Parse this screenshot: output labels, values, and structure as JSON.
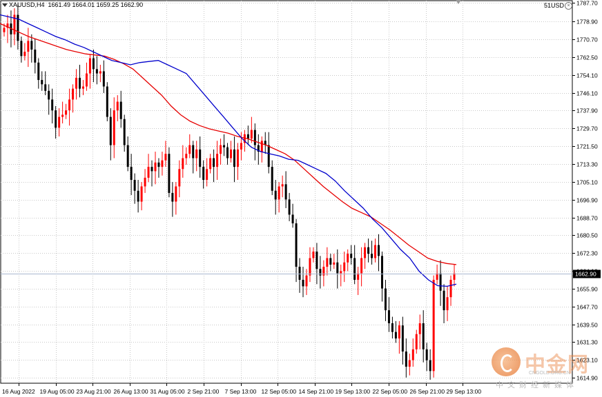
{
  "header": {
    "symbol": "XAUUSD,H4",
    "values": "1661.49 1664.01 1659.25 1662.90",
    "account": "51USD",
    "close_glyph": "×"
  },
  "watermark": {
    "name": "中金网",
    "site": "CNGOLD.ORG.CN",
    "subtitle": "中文财经新媒体"
  },
  "colors": {
    "bull": "#ff0000",
    "bear": "#000000",
    "ma_fast": "#0000cc",
    "ma_slow": "#e60000",
    "grid": "#c8c8c8",
    "price_line": "#a9b8d0",
    "price_label_bg": "#000000"
  },
  "chart_data": {
    "type": "candlestick",
    "title": "XAUUSD,H4",
    "ylim": [
      1612.4,
      1788.5
    ],
    "y_ticks": [
      1787.7,
      1778.9,
      1770.7,
      1762.5,
      1754.1,
      1746.1,
      1737.9,
      1729.7,
      1721.5,
      1713.3,
      1705.1,
      1696.9,
      1688.7,
      1680.5,
      1672.3,
      1664.1,
      1655.9,
      1647.7,
      1639.5,
      1631.3,
      1623.1,
      1614.9
    ],
    "current_price": 1662.9,
    "x_labels": [
      "16 Aug 2022",
      "19 Aug 05:00",
      "23 Aug 21:00",
      "26 Aug 13:00",
      "31 Aug 05:00",
      "2 Sep 21:00",
      "7 Sep 13:00",
      "12 Sep 05:00",
      "14 Sep 21:00",
      "19 Sep 13:00",
      "22 Sep 05:00",
      "26 Sep 21:00",
      "29 Sep 13:00"
    ],
    "close": [
      1776,
      1778,
      1773,
      1782,
      1770,
      1763,
      1765,
      1770,
      1766,
      1760,
      1752,
      1750,
      1747,
      1743,
      1738,
      1730,
      1735,
      1736,
      1738,
      1743,
      1748,
      1753,
      1748,
      1749,
      1755,
      1762,
      1757,
      1755,
      1756,
      1749,
      1735,
      1722,
      1738,
      1742,
      1734,
      1722,
      1712,
      1706,
      1701,
      1696,
      1703,
      1707,
      1712,
      1710,
      1714,
      1712,
      1715,
      1718,
      1700,
      1696,
      1703,
      1711,
      1716,
      1718,
      1722,
      1716,
      1720,
      1712,
      1706,
      1711,
      1716,
      1712,
      1718,
      1722,
      1721,
      1716,
      1720,
      1712,
      1720,
      1723,
      1727,
      1725,
      1729,
      1722,
      1719,
      1724,
      1722,
      1712,
      1701,
      1697,
      1703,
      1704,
      1697,
      1690,
      1686,
      1666,
      1660,
      1657,
      1662,
      1670,
      1673,
      1665,
      1662,
      1666,
      1670,
      1667,
      1668,
      1663,
      1664,
      1668,
      1672,
      1670,
      1660,
      1663,
      1670,
      1675,
      1672,
      1670,
      1676,
      1671,
      1656,
      1646,
      1640,
      1636,
      1633,
      1639,
      1627,
      1620,
      1623,
      1628,
      1635,
      1640,
      1628,
      1623,
      1618,
      1660,
      1663,
      1655,
      1646,
      1652,
      1660,
      1663
    ],
    "ma_fast": [
      1782,
      1781,
      1780,
      1778,
      1776,
      1774,
      1772,
      1770.5,
      1768.5,
      1767,
      1765,
      1763,
      1761,
      1760,
      1759,
      1760,
      1760.5,
      1761,
      1759,
      1757,
      1755,
      1750,
      1745,
      1740,
      1735,
      1730,
      1725,
      1721,
      1719,
      1718,
      1717,
      1715.5,
      1715,
      1713,
      1711,
      1709,
      1705.5,
      1701,
      1697,
      1693,
      1688,
      1684,
      1679,
      1674,
      1670,
      1664,
      1660,
      1657.3,
      1657,
      1658
    ],
    "ma_slow": [
      1778,
      1776,
      1774,
      1772,
      1770.5,
      1769,
      1767.5,
      1766,
      1765,
      1764,
      1763.5,
      1763,
      1761.5,
      1759.5,
      1757,
      1753,
      1749,
      1745,
      1740,
      1736,
      1733,
      1731,
      1729.5,
      1728.5,
      1727.5,
      1726,
      1725,
      1723.5,
      1722,
      1720,
      1718,
      1715,
      1711,
      1707,
      1703,
      1699.5,
      1696,
      1693,
      1691,
      1689,
      1686,
      1683,
      1679.5,
      1676,
      1673,
      1670,
      1668.5,
      1667.5,
      1667
    ]
  }
}
